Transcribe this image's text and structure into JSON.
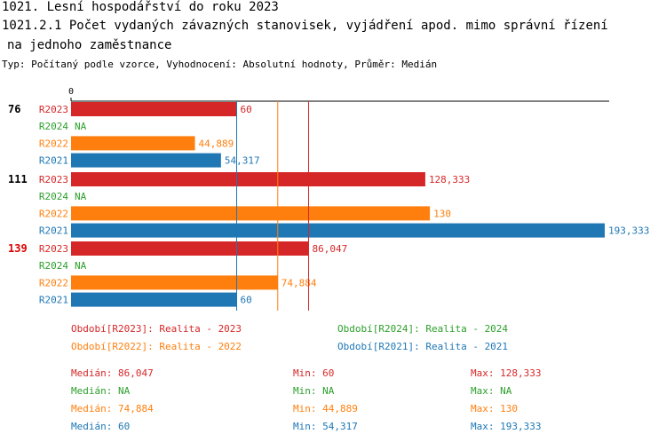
{
  "header": {
    "title1": "1021. Lesní hospodářství do roku 2023",
    "title2": "1021.2.1 Počet vydaných závazných stanovisek, vyjádření apod. mimo správní řízení",
    "title2b": "na jednoho zaměstnance",
    "subtitle": "Typ: Počítaný podle vzorce, Vyhodnocení: Absolutní hodnoty, Průměr: Medián"
  },
  "colors": {
    "R2023": "#d62728",
    "R2024": "#2ca02c",
    "R2022": "#ff7f0e",
    "R2021": "#1f77b4",
    "highlight": "#dd0000"
  },
  "chart_data": {
    "type": "bar",
    "orientation": "horizontal",
    "xlim": [
      0,
      193.333
    ],
    "axis_tick_label": "0",
    "groups": [
      {
        "label": "76",
        "highlight": false,
        "bars": [
          {
            "series": "R2023",
            "value": 60,
            "label": "60"
          },
          {
            "series": "R2024",
            "value": null,
            "label": "NA"
          },
          {
            "series": "R2022",
            "value": 44.889,
            "label": "44,889"
          },
          {
            "series": "R2021",
            "value": 54.317,
            "label": "54,317"
          }
        ]
      },
      {
        "label": "111",
        "highlight": false,
        "bars": [
          {
            "series": "R2023",
            "value": 128.333,
            "label": "128,333"
          },
          {
            "series": "R2024",
            "value": null,
            "label": "NA"
          },
          {
            "series": "R2022",
            "value": 130,
            "label": "130"
          },
          {
            "series": "R2021",
            "value": 193.333,
            "label": "193,333"
          }
        ]
      },
      {
        "label": "139",
        "highlight": true,
        "bars": [
          {
            "series": "R2023",
            "value": 86.047,
            "label": "86,047"
          },
          {
            "series": "R2024",
            "value": null,
            "label": "NA"
          },
          {
            "series": "R2022",
            "value": 74.884,
            "label": "74,884"
          },
          {
            "series": "R2021",
            "value": 60,
            "label": "60"
          }
        ]
      }
    ],
    "median_lines": [
      {
        "series": "R2023",
        "value": 86.047
      },
      {
        "series": "R2022",
        "value": 74.884
      },
      {
        "series": "R2021",
        "value": 60
      }
    ]
  },
  "legend": [
    {
      "series": "R2023",
      "text": "Období[R2023]: Realita - 2023"
    },
    {
      "series": "R2024",
      "text": "Období[R2024]: Realita - 2024"
    },
    {
      "series": "R2022",
      "text": "Období[R2022]: Realita - 2022"
    },
    {
      "series": "R2021",
      "text": "Období[R2021]: Realita - 2021"
    }
  ],
  "stats": [
    {
      "series": "R2023",
      "median": "Medián: 86,047",
      "min": "Min: 60",
      "max": "Max: 128,333"
    },
    {
      "series": "R2024",
      "median": "Medián: NA",
      "min": "Min: NA",
      "max": "Max: NA"
    },
    {
      "series": "R2022",
      "median": "Medián: 74,884",
      "min": "Min: 44,889",
      "max": "Max: 130"
    },
    {
      "series": "R2021",
      "median": "Medián: 60",
      "min": "Min: 54,317",
      "max": "Max: 193,333"
    }
  ]
}
